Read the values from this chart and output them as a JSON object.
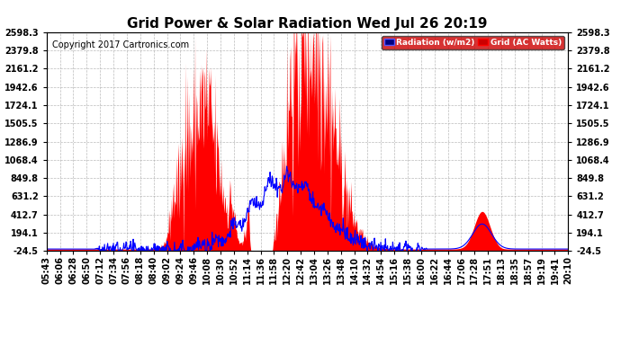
{
  "title": "Grid Power & Solar Radiation Wed Jul 26 20:19",
  "copyright": "Copyright 2017 Cartronics.com",
  "yticks": [
    -24.5,
    194.1,
    412.7,
    631.2,
    849.8,
    1068.4,
    1286.9,
    1505.5,
    1724.1,
    1942.6,
    2161.2,
    2379.8,
    2598.3
  ],
  "xtick_labels": [
    "05:43",
    "06:06",
    "06:28",
    "06:50",
    "07:12",
    "07:34",
    "07:56",
    "08:18",
    "08:40",
    "09:02",
    "09:24",
    "09:46",
    "10:08",
    "10:30",
    "10:52",
    "11:14",
    "11:36",
    "11:58",
    "12:20",
    "12:42",
    "13:04",
    "13:26",
    "13:48",
    "14:10",
    "14:32",
    "14:54",
    "15:16",
    "15:38",
    "16:00",
    "16:22",
    "16:44",
    "17:06",
    "17:28",
    "17:51",
    "18:13",
    "18:35",
    "18:57",
    "19:19",
    "19:41",
    "20:10"
  ],
  "legend_radiation_label": "Radiation (w/m2)",
  "legend_grid_label": "Grid (AC Watts)",
  "fill_color": "#ff0000",
  "line_color": "#0000ff",
  "background_color": "#ffffff",
  "grid_color": "#aaaaaa",
  "title_fontsize": 11,
  "copyright_fontsize": 7,
  "tick_fontsize": 7,
  "ymin": -24.5,
  "ymax": 2598.3,
  "n_points": 1000
}
